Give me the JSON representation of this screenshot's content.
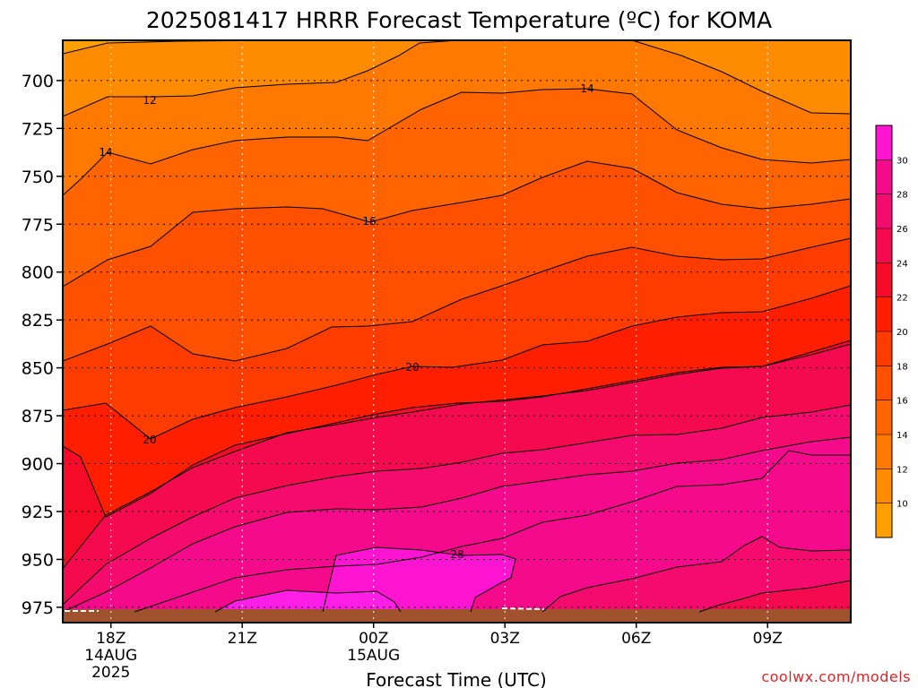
{
  "chart_data": {
    "type": "contour-time-height",
    "title": "2025081417 HRRR Forecast Temperature (ºC) for KOMA",
    "xlabel": "Forecast Time (UTC)",
    "ylabel": "",
    "credit": "coolwx.com/models",
    "y_axis": {
      "quantity": "pressure (hPa)",
      "inverted": true,
      "range": [
        679,
        983
      ],
      "ticks": [
        "700",
        "725",
        "750",
        "775",
        "800",
        "825",
        "850",
        "875",
        "900",
        "925",
        "950",
        "975"
      ]
    },
    "x_axis": {
      "range_hours_utc": [
        16.9,
        34.9
      ],
      "ticks": [
        {
          "label": "18Z",
          "sub1": "14AUG",
          "sub2": "2025"
        },
        {
          "label": "21Z",
          "sub1": "",
          "sub2": ""
        },
        {
          "label": "00Z",
          "sub1": "15AUG",
          "sub2": ""
        },
        {
          "label": "03Z",
          "sub1": "",
          "sub2": ""
        },
        {
          "label": "06Z",
          "sub1": "",
          "sub2": ""
        },
        {
          "label": "09Z",
          "sub1": "",
          "sub2": ""
        }
      ]
    },
    "grid": "dotted",
    "contour_interval": 2,
    "colorbar": {
      "placement": "right",
      "levels": [
        8,
        10,
        12,
        14,
        16,
        18,
        20,
        22,
        24,
        26,
        28,
        30,
        32
      ],
      "tick_labels": [
        "10",
        "12",
        "14",
        "16",
        "18",
        "20",
        "22",
        "24",
        "26",
        "28",
        "30"
      ],
      "colors": [
        "#ffa000",
        "#ff8c00",
        "#ff7800",
        "#ff6400",
        "#ff5000",
        "#ff3c00",
        "#ff1e00",
        "#f50a28",
        "#f50a50",
        "#f50a6e",
        "#f50a8c",
        "#ff14d2"
      ]
    },
    "contour_labels": [
      "12",
      "14",
      "14",
      "16",
      "20",
      "20",
      "28"
    ],
    "ground_color": "#a0522d"
  }
}
